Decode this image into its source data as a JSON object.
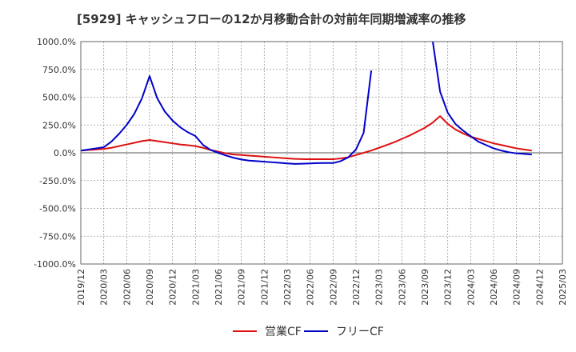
{
  "chart_data": {
    "type": "line",
    "title": "[5929]  キャッシュフローの12か月移動合計の対前年同期増減率の推移",
    "xlabel": "",
    "ylabel": "",
    "ylim": [
      -1000,
      1000
    ],
    "yticks": [
      1000,
      750,
      500,
      250,
      0,
      -250,
      -500,
      -750,
      -1000
    ],
    "ytick_labels": [
      "1000.0%",
      "750.0%",
      "500.0%",
      "250.0%",
      "0.0%",
      "-250.0%",
      "-500.0%",
      "-750.0%",
      "-1000.0%"
    ],
    "x_start": "2019/12",
    "x_end": "2025/03",
    "xtick_labels": [
      "2019/12",
      "2020/03",
      "2020/06",
      "2020/09",
      "2020/12",
      "2021/03",
      "2021/06",
      "2021/09",
      "2021/12",
      "2022/03",
      "2022/06",
      "2022/09",
      "2022/12",
      "2023/03",
      "2023/06",
      "2023/09",
      "2023/12",
      "2024/03",
      "2024/06",
      "2024/09",
      "2024/12",
      "2025/03"
    ],
    "grid": true,
    "legend_position": "bottom",
    "series": [
      {
        "name": "営業CF",
        "color": "#dd1111",
        "points": [
          [
            "2019/12",
            20
          ],
          [
            "2020/01",
            25
          ],
          [
            "2020/02",
            30
          ],
          [
            "2020/03",
            35
          ],
          [
            "2020/04",
            45
          ],
          [
            "2020/05",
            60
          ],
          [
            "2020/06",
            75
          ],
          [
            "2020/07",
            90
          ],
          [
            "2020/08",
            105
          ],
          [
            "2020/09",
            115
          ],
          [
            "2020/10",
            105
          ],
          [
            "2020/11",
            95
          ],
          [
            "2020/12",
            85
          ],
          [
            "2021/01",
            75
          ],
          [
            "2021/02",
            68
          ],
          [
            "2021/03",
            60
          ],
          [
            "2021/04",
            45
          ],
          [
            "2021/05",
            25
          ],
          [
            "2021/06",
            10
          ],
          [
            "2021/07",
            -5
          ],
          [
            "2021/08",
            -15
          ],
          [
            "2021/09",
            -20
          ],
          [
            "2021/10",
            -25
          ],
          [
            "2021/11",
            -30
          ],
          [
            "2021/12",
            -35
          ],
          [
            "2022/01",
            -40
          ],
          [
            "2022/02",
            -45
          ],
          [
            "2022/03",
            -50
          ],
          [
            "2022/04",
            -55
          ],
          [
            "2022/05",
            -57
          ],
          [
            "2022/06",
            -58
          ],
          [
            "2022/07",
            -58
          ],
          [
            "2022/08",
            -58
          ],
          [
            "2022/09",
            -58
          ],
          [
            "2022/10",
            -50
          ],
          [
            "2022/11",
            -40
          ],
          [
            "2022/12",
            -20
          ],
          [
            "2023/01",
            0
          ],
          [
            "2023/02",
            20
          ],
          [
            "2023/03",
            45
          ],
          [
            "2023/04",
            70
          ],
          [
            "2023/05",
            95
          ],
          [
            "2023/06",
            125
          ],
          [
            "2023/07",
            155
          ],
          [
            "2023/08",
            190
          ],
          [
            "2023/09",
            225
          ],
          [
            "2023/10",
            270
          ],
          [
            "2023/11",
            330
          ],
          [
            "2023/12",
            260
          ],
          [
            "2024/01",
            210
          ],
          [
            "2024/02",
            175
          ],
          [
            "2024/03",
            145
          ],
          [
            "2024/04",
            125
          ],
          [
            "2024/05",
            105
          ],
          [
            "2024/06",
            85
          ],
          [
            "2024/07",
            70
          ],
          [
            "2024/08",
            55
          ],
          [
            "2024/09",
            40
          ],
          [
            "2024/10",
            30
          ],
          [
            "2024/11",
            20
          ]
        ]
      },
      {
        "name": "フリーCF",
        "color": "#0000cc",
        "segments": [
          [
            [
              "2019/12",
              20
            ],
            [
              "2020/01",
              30
            ],
            [
              "2020/02",
              40
            ],
            [
              "2020/03",
              50
            ],
            [
              "2020/04",
              100
            ],
            [
              "2020/05",
              170
            ],
            [
              "2020/06",
              250
            ],
            [
              "2020/07",
              350
            ],
            [
              "2020/08",
              490
            ],
            [
              "2020/09",
              690
            ],
            [
              "2020/10",
              490
            ],
            [
              "2020/11",
              370
            ],
            [
              "2020/12",
              290
            ],
            [
              "2021/01",
              230
            ],
            [
              "2021/02",
              185
            ],
            [
              "2021/03",
              150
            ],
            [
              "2021/04",
              70
            ],
            [
              "2021/05",
              25
            ],
            [
              "2021/06",
              0
            ],
            [
              "2021/07",
              -25
            ],
            [
              "2021/08",
              -45
            ],
            [
              "2021/09",
              -60
            ],
            [
              "2021/10",
              -70
            ],
            [
              "2021/11",
              -75
            ],
            [
              "2021/12",
              -80
            ],
            [
              "2022/01",
              -85
            ],
            [
              "2022/02",
              -90
            ],
            [
              "2022/03",
              -95
            ],
            [
              "2022/04",
              -100
            ],
            [
              "2022/05",
              -98
            ],
            [
              "2022/06",
              -95
            ],
            [
              "2022/07",
              -93
            ],
            [
              "2022/08",
              -92
            ],
            [
              "2022/09",
              -92
            ],
            [
              "2022/10",
              -75
            ],
            [
              "2022/11",
              -40
            ],
            [
              "2022/12",
              30
            ],
            [
              "2023/01",
              180
            ],
            [
              "2023/02",
              740
            ]
          ],
          [
            [
              "2023/10",
              1020
            ],
            [
              "2023/11",
              550
            ],
            [
              "2023/12",
              360
            ],
            [
              "2024/01",
              260
            ],
            [
              "2024/02",
              200
            ],
            [
              "2024/03",
              150
            ],
            [
              "2024/04",
              100
            ],
            [
              "2024/05",
              70
            ],
            [
              "2024/06",
              40
            ],
            [
              "2024/07",
              20
            ],
            [
              "2024/08",
              5
            ],
            [
              "2024/09",
              -5
            ],
            [
              "2024/10",
              -10
            ],
            [
              "2024/11",
              -15
            ]
          ]
        ]
      }
    ]
  }
}
